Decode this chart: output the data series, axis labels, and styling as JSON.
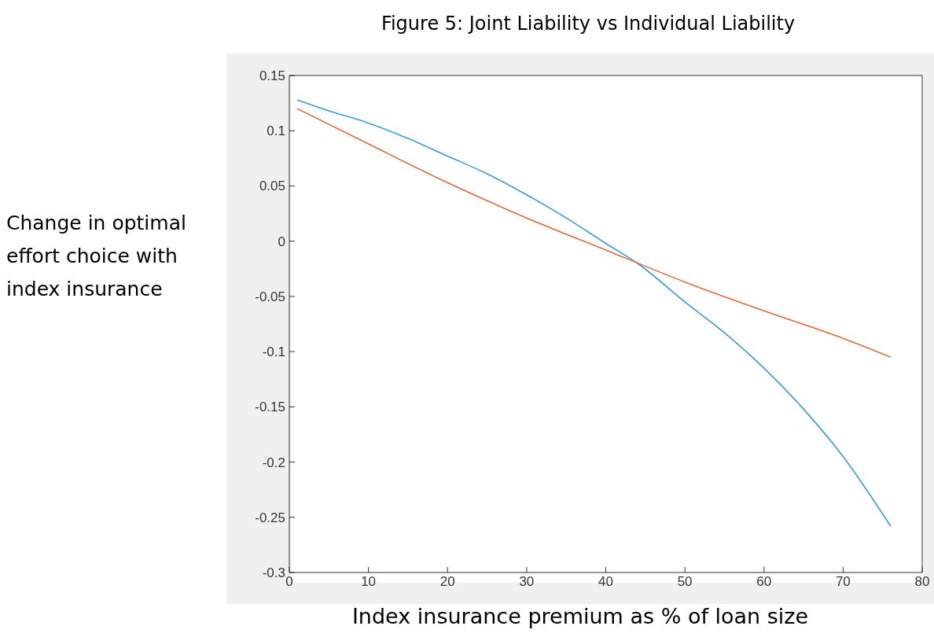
{
  "chart_data": {
    "type": "line",
    "title": "Figure 5: Joint Liability vs Individual Liability",
    "xlabel": "Index insurance premium as % of loan size",
    "ylabel": "Change in optimal effort choice with index insurance",
    "series": [
      {
        "color": "#3a9ad9",
        "x": [
          1,
          5,
          10,
          15,
          20,
          25,
          30,
          35,
          40,
          44,
          50,
          55,
          60,
          65,
          70,
          76
        ],
        "values": [
          0.128,
          0.118,
          0.107,
          0.093,
          0.077,
          0.061,
          0.042,
          0.021,
          -0.002,
          -0.02,
          -0.055,
          -0.083,
          -0.115,
          -0.152,
          -0.195,
          -0.258
        ]
      },
      {
        "color": "#e0683a",
        "x": [
          1,
          10,
          20,
          30,
          40,
          50,
          60,
          70,
          76
        ],
        "values": [
          0.12,
          0.088,
          0.053,
          0.021,
          -0.008,
          -0.037,
          -0.063,
          -0.088,
          -0.105
        ]
      }
    ],
    "xlim": [
      0,
      80
    ],
    "xticks": [
      0,
      10,
      20,
      30,
      40,
      50,
      60,
      70,
      80
    ],
    "ylim": [
      -0.3,
      0.15
    ],
    "yticks": [
      -0.3,
      -0.25,
      -0.2,
      -0.15,
      -0.1,
      -0.05,
      0,
      0.05,
      0.1,
      0.15
    ],
    "grid": false,
    "marker": "none",
    "line_style": "solid"
  }
}
